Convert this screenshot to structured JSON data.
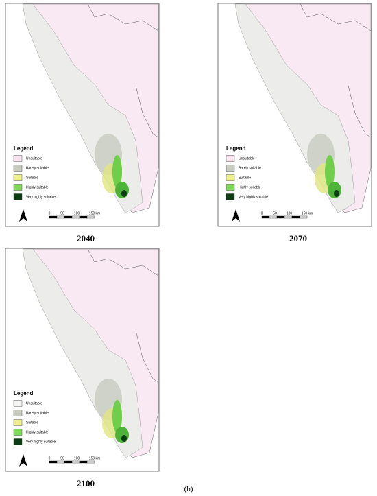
{
  "panels": [
    {
      "year": "2040",
      "legend": {
        "title": "Legend",
        "items": [
          {
            "label": "Unsuitable",
            "color": "#f7e6f0"
          },
          {
            "label": "Barely suitable",
            "color": "#c8cbbf"
          },
          {
            "label": "Suitable",
            "color": "#eef08a"
          },
          {
            "label": "Highly suitable",
            "color": "#7ed957"
          },
          {
            "label": "Very highly suitable",
            "color": "#0b3d12"
          }
        ]
      },
      "scale": [
        "0",
        "50",
        "100",
        "150 km"
      ]
    },
    {
      "year": "2070",
      "legend": {
        "title": "Legend",
        "items": [
          {
            "label": "Unsuitable",
            "color": "#f7e6f0"
          },
          {
            "label": "Barely suitable",
            "color": "#c8cbbf"
          },
          {
            "label": "Suitable",
            "color": "#eef08a"
          },
          {
            "label": "Highly suitable",
            "color": "#7ed957"
          },
          {
            "label": "Very highly suitable",
            "color": "#0b3d12"
          }
        ]
      },
      "scale": [
        "0",
        "50",
        "100",
        "150 km"
      ]
    },
    {
      "year": "2100",
      "legend": {
        "title": "Legend",
        "items": [
          {
            "label": "Unsuitable",
            "color": "#f4f4f2"
          },
          {
            "label": "Barely suitable",
            "color": "#c8cbbf"
          },
          {
            "label": "Suitable",
            "color": "#eef08a"
          },
          {
            "label": "Highly suitable",
            "color": "#7ed957"
          },
          {
            "label": "Very highly suitable",
            "color": "#0b3d12"
          }
        ]
      },
      "scale": [
        "0",
        "50",
        "100",
        "150 km"
      ]
    }
  ],
  "caption": "(b)"
}
